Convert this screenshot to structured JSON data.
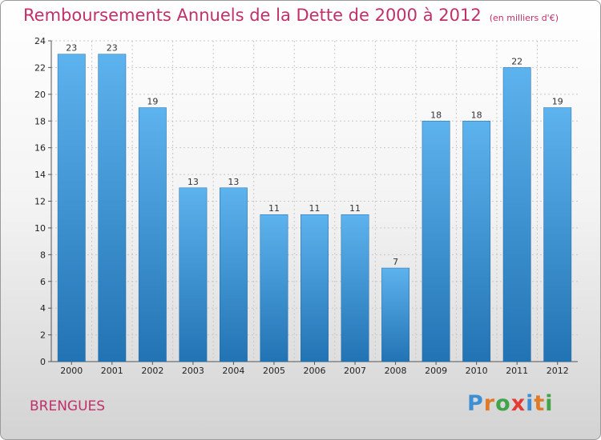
{
  "header": {
    "title": "Remboursements Annuels de la Dette de 2000 à 2012",
    "unit": "(en milliers d'€)"
  },
  "footer": {
    "commune": "BRENGUES",
    "logo_letters": [
      {
        "ch": "P",
        "color": "#3d8fd4"
      },
      {
        "ch": "r",
        "color": "#e07a26"
      },
      {
        "ch": "o",
        "color": "#43a348"
      },
      {
        "ch": "x",
        "color": "#e53935"
      },
      {
        "ch": "i",
        "color": "#3d8fd4"
      },
      {
        "ch": "t",
        "color": "#e07a26"
      },
      {
        "ch": "i",
        "color": "#43a348"
      }
    ]
  },
  "colors": {
    "bar_light": "#5db3ee",
    "bar_dark": "#2273b3",
    "title": "#c0306a",
    "grid": "#c8c8c8"
  },
  "chart_data": {
    "type": "bar",
    "categories": [
      "2000",
      "2001",
      "2002",
      "2003",
      "2004",
      "2005",
      "2006",
      "2007",
      "2008",
      "2009",
      "2010",
      "2011",
      "2012"
    ],
    "values": [
      23,
      23,
      19,
      13,
      13,
      11,
      11,
      11,
      7,
      18,
      18,
      22,
      19
    ],
    "title": "Remboursements Annuels de la Dette de 2000 à 2012",
    "ylim": [
      0,
      24
    ],
    "yticks": [
      0,
      2,
      4,
      6,
      8,
      10,
      12,
      14,
      16,
      18,
      20,
      22,
      24
    ],
    "grid": true,
    "data_labels": true
  }
}
